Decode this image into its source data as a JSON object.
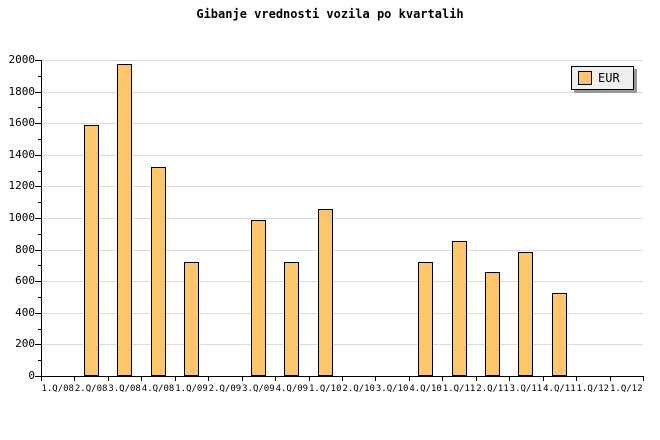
{
  "chart_data": {
    "type": "bar",
    "title": "Gibanje vrednosti vozila po kvartalih",
    "categories": [
      "1.Q/08",
      "2.Q/08",
      "3.Q/08",
      "4.Q/08",
      "1.Q/09",
      "2.Q/09",
      "3.Q/09",
      "4.Q/09",
      "1.Q/10",
      "2.Q/10",
      "3.Q/10",
      "4.Q/10",
      "1.Q/11",
      "2.Q/11",
      "3.Q/11",
      "4.Q/11",
      "1.Q/12",
      "1.Q/12"
    ],
    "series": [
      {
        "name": "EUR",
        "values": [
          null,
          1590,
          1975,
          1320,
          720,
          null,
          985,
          720,
          1055,
          null,
          null,
          720,
          855,
          660,
          785,
          525,
          null,
          null
        ]
      }
    ],
    "xlabel": "",
    "ylabel": "",
    "ylim": [
      0,
      2000
    ],
    "ytick_step": 200,
    "ytick_minor_step": 100,
    "ytick_labels": [
      "0",
      "200",
      "400",
      "600",
      "800",
      "1000",
      "1200",
      "1400",
      "1600",
      "1800",
      "2000"
    ],
    "grid": "horizontal-major",
    "legend_position": "top-right",
    "legend_label": "EUR",
    "colors": {
      "bar_fill": "#FDC66A",
      "bar_border": "#000000",
      "grid": "#DCDCDC",
      "axis": "#000000",
      "text": "#000000",
      "legend_bg": "#EFEFEF",
      "legend_shadow": "#999999",
      "background": "#FFFFFF"
    }
  }
}
